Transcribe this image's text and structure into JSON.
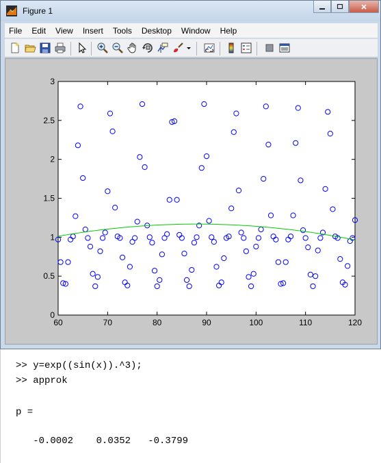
{
  "window": {
    "title": "Figure 1"
  },
  "menu": [
    "File",
    "Edit",
    "View",
    "Insert",
    "Tools",
    "Desktop",
    "Window",
    "Help"
  ],
  "toolbar": [
    {
      "name": "new-figure-icon"
    },
    {
      "name": "open-file-icon"
    },
    {
      "name": "save-figure-icon"
    },
    {
      "name": "print-figure-icon"
    },
    {
      "name": "edit-plot-icon"
    },
    {
      "name": "zoom-in-icon"
    },
    {
      "name": "zoom-out-icon"
    },
    {
      "name": "pan-icon"
    },
    {
      "name": "rotate-3d-icon"
    },
    {
      "name": "data-cursor-icon"
    },
    {
      "name": "brush-icon"
    },
    {
      "name": "link-plot-icon"
    },
    {
      "name": "colorbar-icon"
    },
    {
      "name": "legend-icon"
    },
    {
      "name": "hide-plot-tools-icon"
    },
    {
      "name": "show-plot-tools-icon"
    }
  ],
  "chart_data": {
    "type": "scatter",
    "xlim": [
      60,
      120
    ],
    "ylim": [
      0,
      3
    ],
    "x_ticks": [
      "60",
      "70",
      "80",
      "90",
      "100",
      "110",
      "120"
    ],
    "y_ticks": [
      "0",
      "0.5",
      "1",
      "1.5",
      "2",
      "2.5",
      "3"
    ],
    "grid": false,
    "series": [
      {
        "marker": "circle",
        "color": "#0000ff",
        "x": [
          60,
          60.5,
          61,
          61.5,
          62,
          62.5,
          63,
          63.5,
          64,
          64.5,
          65,
          65.5,
          66,
          66.5,
          67,
          67.5,
          68,
          68.5,
          69,
          69.5,
          70,
          70.5,
          71,
          71.5,
          72,
          72.5,
          73,
          73.5,
          74,
          74.5,
          75,
          75.5,
          76,
          76.5,
          77,
          77.5,
          78,
          78.5,
          79,
          79.5,
          80,
          80.5,
          81,
          81.5,
          82,
          82.5,
          83,
          83.5,
          84,
          84.5,
          85,
          85.5,
          86,
          86.5,
          87,
          87.5,
          88,
          88.5,
          89,
          89.5,
          90,
          90.5,
          91,
          91.5,
          92,
          92.5,
          93,
          93.5,
          94,
          94.5,
          95,
          95.5,
          96,
          96.5,
          97,
          97.5,
          98,
          98.5,
          99,
          99.5,
          100,
          100.5,
          101,
          101.5,
          102,
          102.5,
          103,
          103.5,
          104,
          104.5,
          105,
          105.5,
          106,
          106.5,
          107,
          107.5,
          108,
          108.5,
          109,
          109.5,
          110,
          110.5,
          111,
          111.5,
          112,
          112.5,
          113,
          113.5,
          114,
          114.5,
          115,
          115.5,
          116,
          116.5,
          117,
          117.5,
          118,
          118.5,
          119,
          119.5,
          120
        ],
        "y": [
          0.97,
          0.68,
          0.41,
          0.4,
          0.68,
          0.97,
          1.01,
          1.27,
          2.18,
          2.68,
          1.76,
          1.1,
          0.99,
          0.88,
          0.53,
          0.37,
          0.49,
          0.82,
          0.99,
          1.06,
          1.59,
          2.59,
          2.36,
          1.38,
          1.01,
          0.99,
          0.74,
          0.42,
          0.38,
          0.62,
          0.94,
          0.99,
          1.2,
          2.03,
          2.71,
          1.9,
          1.15,
          1.0,
          0.93,
          0.57,
          0.37,
          0.45,
          0.78,
          0.99,
          1.04,
          1.48,
          2.48,
          2.49,
          1.48,
          1.03,
          0.99,
          0.79,
          0.45,
          0.37,
          0.58,
          0.93,
          1.0,
          1.15,
          1.89,
          2.71,
          2.04,
          1.21,
          1.0,
          0.94,
          0.62,
          0.38,
          0.42,
          0.73,
          0.99,
          1.01,
          1.37,
          2.35,
          2.59,
          1.6,
          1.06,
          0.99,
          0.82,
          0.49,
          0.37,
          0.53,
          0.88,
          0.99,
          1.1,
          1.75,
          2.68,
          2.19,
          1.28,
          1.01,
          0.97,
          0.68,
          0.4,
          0.41,
          0.68,
          0.97,
          1.01,
          1.28,
          2.21,
          2.66,
          1.73,
          1.09,
          0.99,
          0.87,
          0.52,
          0.37,
          0.5,
          0.83,
          0.99,
          1.06,
          1.62,
          2.61,
          2.33,
          1.36,
          1.01,
          0.99,
          0.72,
          0.42,
          0.39,
          0.63,
          0.95,
          0.99,
          1.22
        ]
      },
      {
        "type": "line",
        "color": "#00cc00",
        "coeffs": [
          -0.0002,
          0.0352,
          -0.3799
        ]
      }
    ]
  },
  "command_window": {
    "lines": [
      ">> y=exp((sin(x)).^3);",
      ">> approk",
      "",
      "p =",
      "",
      "   -0.0002    0.0352   -0.3799"
    ]
  }
}
